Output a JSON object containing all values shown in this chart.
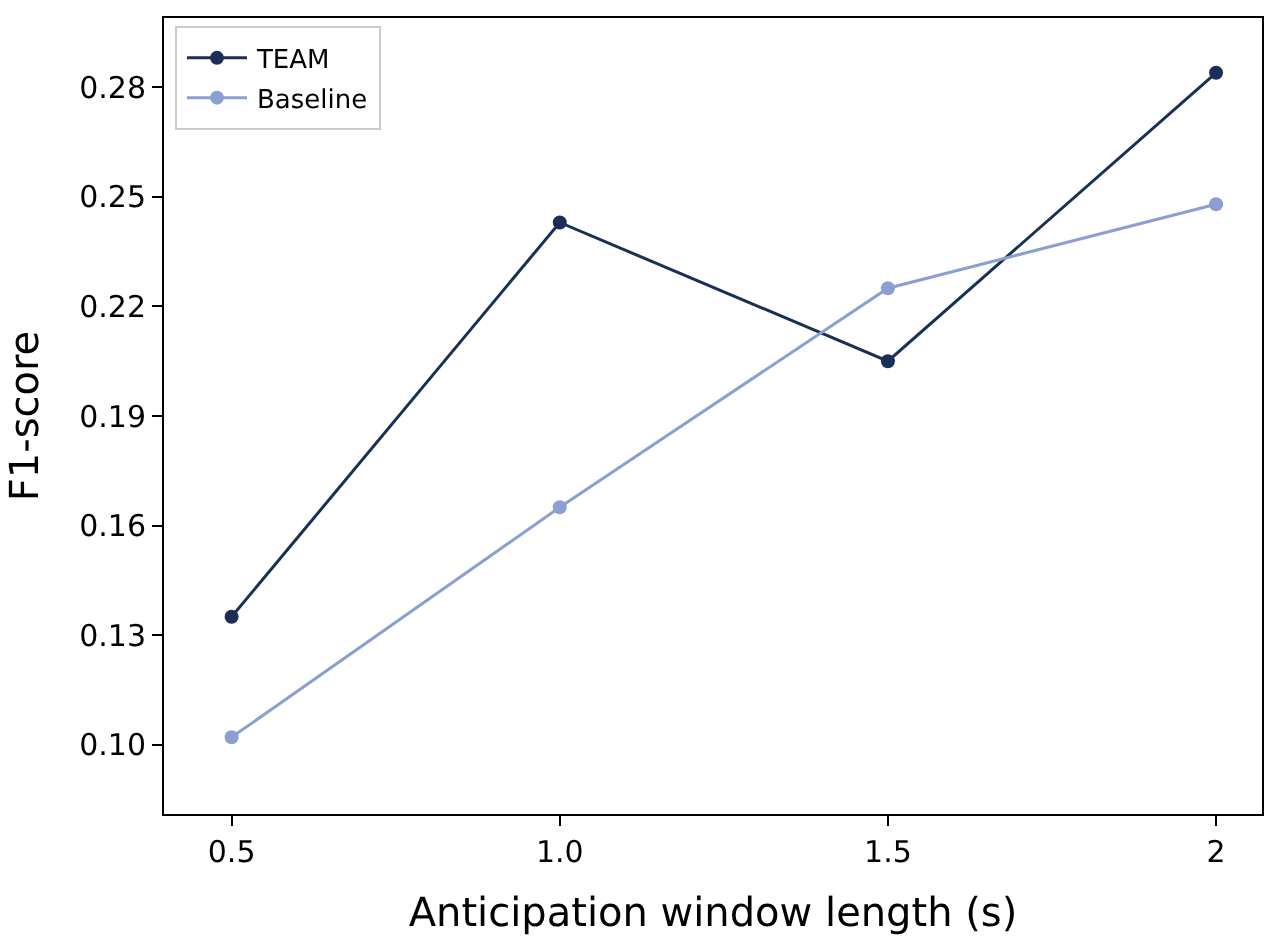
{
  "chart_data": {
    "type": "line",
    "xlabel": "Anticipation window length (s)",
    "ylabel": "F1-score",
    "x": [
      0.5,
      1.0,
      1.5,
      2.0
    ],
    "series": [
      {
        "name": "TEAM",
        "color": "#1a2f55",
        "values": [
          0.135,
          0.243,
          0.205,
          0.284
        ]
      },
      {
        "name": "Baseline",
        "color": "#8b9fd1",
        "values": [
          0.102,
          0.165,
          0.225,
          0.248
        ]
      }
    ],
    "xlim": [
      0.397,
      2.07
    ],
    "xticks": [
      0.5,
      {
        "value": 1.0,
        "label": "1.0"
      },
      1.5,
      2
    ],
    "ylim": [
      0.081,
      0.299
    ],
    "yticks": [
      {
        "value": 0.1,
        "label": "0.10"
      },
      0.13,
      0.16,
      0.19,
      0.22,
      0.25,
      0.28
    ],
    "legend": "top left",
    "marker": "circle",
    "line_style": "solid"
  }
}
